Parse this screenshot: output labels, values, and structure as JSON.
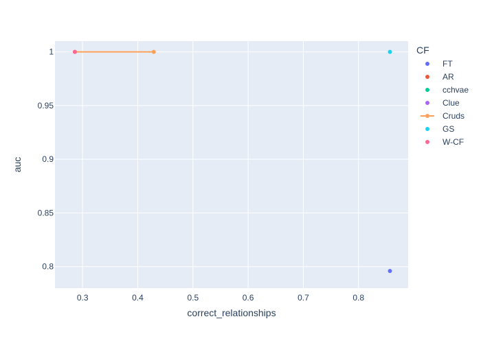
{
  "chart_data": {
    "type": "scatter",
    "xlabel": "correct_relationships",
    "ylabel": "auc",
    "xlim": [
      0.25,
      0.89
    ],
    "ylim": [
      0.78,
      1.01
    ],
    "x_ticks": [
      0.3,
      0.4,
      0.5,
      0.6,
      0.7,
      0.8
    ],
    "x_tick_labels": [
      "0.3",
      "0.4",
      "0.5",
      "0.6",
      "0.7",
      "0.8"
    ],
    "y_ticks": [
      0.8,
      0.85,
      0.9,
      0.95,
      1
    ],
    "y_tick_labels": [
      "0.8",
      "0.85",
      "0.9",
      "0.95",
      "1"
    ],
    "grid": true,
    "legend_title": "CF",
    "legend_position": "right",
    "plot_background": "#e5ecf6",
    "series": [
      {
        "name": "FT",
        "color": "#636efa",
        "mode": "markers",
        "points": [
          [
            0.857,
            0.796
          ]
        ]
      },
      {
        "name": "AR",
        "color": "#ef553b",
        "mode": "markers",
        "points": []
      },
      {
        "name": "cchvae",
        "color": "#00cc96",
        "mode": "markers",
        "points": []
      },
      {
        "name": "Clue",
        "color": "#ab63fa",
        "mode": "markers",
        "points": []
      },
      {
        "name": "Cruds",
        "color": "#ffa15a",
        "mode": "lines+markers",
        "points": [
          [
            0.286,
            1.0
          ],
          [
            0.429,
            1.0
          ]
        ]
      },
      {
        "name": "GS",
        "color": "#19d3f3",
        "mode": "markers",
        "points": [
          [
            0.857,
            1.0
          ]
        ]
      },
      {
        "name": "W-CF",
        "color": "#ff6692",
        "mode": "markers",
        "points": [
          [
            0.286,
            1.0
          ]
        ]
      }
    ]
  }
}
